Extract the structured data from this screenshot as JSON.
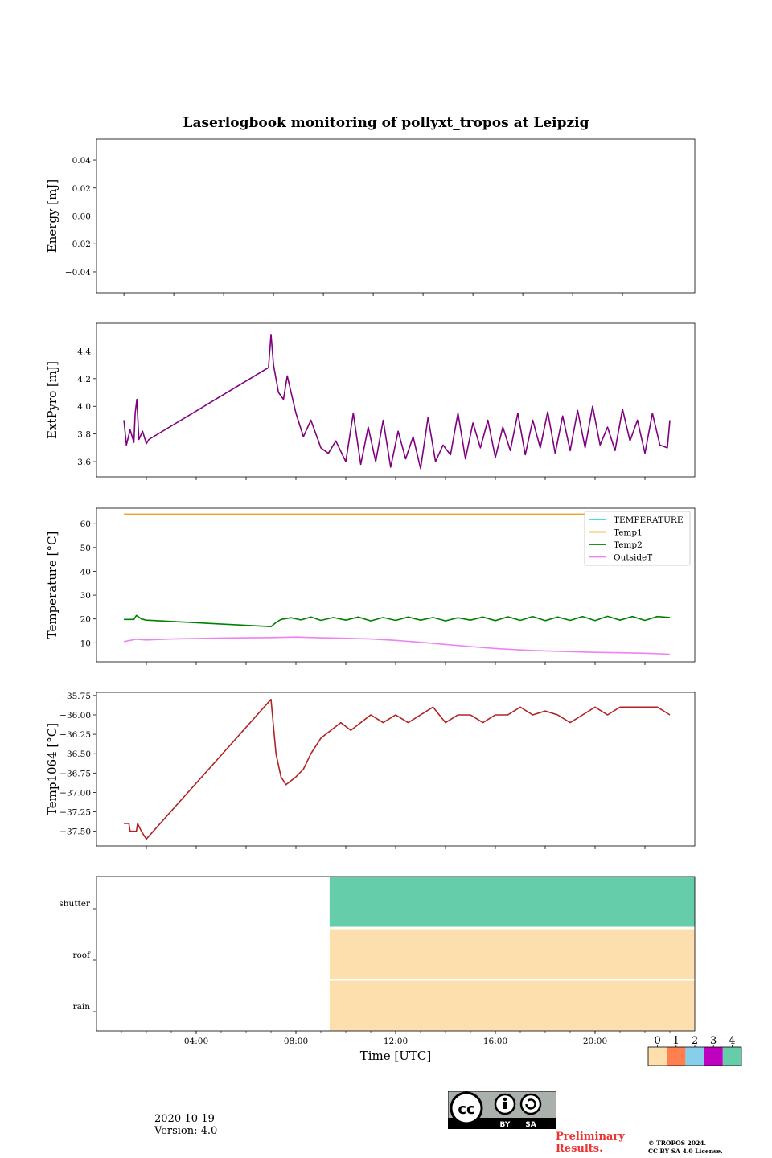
{
  "figure": {
    "title": "Laserlogbook monitoring of pollyxt_tropos at Leipzig"
  },
  "footer": {
    "date": "2020-10-19",
    "version": "Version: 4.0",
    "preliminary": "Preliminary\nResults.",
    "copyright": "© TROPOS 2024.\nCC BY SA 4.0 License.",
    "cc_text": {
      "by": "BY",
      "sa": "SA"
    }
  },
  "chart_data": [
    {
      "type": "line",
      "panel": "energy",
      "ylabel": "Energy [mJ]",
      "ylim": [
        -0.055,
        0.055
      ],
      "yticks": [
        0.04,
        0.02,
        0.0,
        -0.02,
        -0.04
      ],
      "ytick_labels": [
        "0.04",
        "0.02",
        "0.00",
        "−0.02",
        "−0.04"
      ],
      "xlim": [
        0,
        24
      ],
      "series": []
    },
    {
      "type": "line",
      "panel": "extpyro",
      "ylabel": "ExtPyro [mJ]",
      "ylim": [
        3.49,
        4.6
      ],
      "yticks": [
        3.6,
        3.8,
        4.0,
        4.2,
        4.4
      ],
      "ytick_labels": [
        "3.6",
        "3.8",
        "4.0",
        "4.2",
        "4.4"
      ],
      "xlim": [
        0,
        24
      ],
      "series": [
        {
          "name": "ExtPyro",
          "color": "#800080",
          "x": [
            1.1,
            1.2,
            1.35,
            1.5,
            1.55,
            1.62,
            1.7,
            1.85,
            2.0,
            2.1,
            6.9,
            7.0,
            7.1,
            7.3,
            7.5,
            7.65,
            8.0,
            8.3,
            8.6,
            9.0,
            9.3,
            9.6,
            10.0,
            10.3,
            10.6,
            10.9,
            11.2,
            11.5,
            11.8,
            12.1,
            12.4,
            12.7,
            13.0,
            13.3,
            13.6,
            13.9,
            14.2,
            14.5,
            14.8,
            15.1,
            15.4,
            15.7,
            16.0,
            16.3,
            16.6,
            16.9,
            17.2,
            17.5,
            17.8,
            18.1,
            18.4,
            18.7,
            19.0,
            19.3,
            19.6,
            19.9,
            20.2,
            20.5,
            20.8,
            21.1,
            21.4,
            21.7,
            22.0,
            22.3,
            22.6,
            22.9,
            23.0
          ],
          "y": [
            3.9,
            3.72,
            3.83,
            3.74,
            3.95,
            4.05,
            3.76,
            3.82,
            3.73,
            3.76,
            4.28,
            4.52,
            4.3,
            4.1,
            4.05,
            4.22,
            3.95,
            3.78,
            3.9,
            3.7,
            3.66,
            3.75,
            3.6,
            3.95,
            3.58,
            3.85,
            3.6,
            3.9,
            3.56,
            3.82,
            3.62,
            3.78,
            3.55,
            3.92,
            3.6,
            3.72,
            3.65,
            3.95,
            3.62,
            3.88,
            3.7,
            3.9,
            3.63,
            3.85,
            3.68,
            3.95,
            3.65,
            3.9,
            3.7,
            3.96,
            3.66,
            3.93,
            3.68,
            3.97,
            3.7,
            4.0,
            3.72,
            3.85,
            3.68,
            3.98,
            3.75,
            3.9,
            3.66,
            3.95,
            3.72,
            3.7,
            3.9
          ]
        }
      ]
    },
    {
      "type": "line",
      "panel": "temperature",
      "ylabel": "Temperature [°C]",
      "ylim": [
        2,
        66.5
      ],
      "yticks": [
        10,
        20,
        30,
        40,
        50,
        60
      ],
      "ytick_labels": [
        "10",
        "20",
        "30",
        "40",
        "50",
        "60"
      ],
      "xlim": [
        0,
        24
      ],
      "legend_position": "top-right",
      "series": [
        {
          "name": "TEMPERATURE",
          "color": "#22dddd",
          "x": [],
          "y": []
        },
        {
          "name": "Temp1",
          "color": "#f0a020",
          "x": [
            1.1,
            23.0
          ],
          "y": [
            64,
            64
          ]
        },
        {
          "name": "Temp2",
          "color": "#008000",
          "x": [
            1.1,
            1.5,
            1.6,
            1.8,
            2.0,
            7.0,
            7.2,
            7.4,
            7.8,
            8.2,
            8.6,
            9.0,
            9.5,
            10.0,
            10.5,
            11.0,
            11.5,
            12.0,
            12.5,
            13.0,
            13.5,
            14.0,
            14.5,
            15.0,
            15.5,
            16.0,
            16.5,
            17.0,
            17.5,
            18.0,
            18.5,
            19.0,
            19.5,
            20.0,
            20.5,
            21.0,
            21.5,
            22.0,
            22.5,
            23.0
          ],
          "y": [
            19.8,
            19.8,
            21.5,
            20.0,
            19.5,
            16.8,
            18.5,
            19.8,
            20.5,
            19.6,
            20.8,
            19.4,
            20.6,
            19.5,
            20.8,
            19.2,
            20.6,
            19.4,
            20.8,
            19.5,
            20.6,
            19.2,
            20.5,
            19.5,
            20.8,
            19.3,
            20.9,
            19.4,
            21.0,
            19.3,
            20.8,
            19.4,
            21.0,
            19.3,
            21.1,
            19.5,
            21.0,
            19.4,
            21.0,
            20.6
          ]
        },
        {
          "name": "OutsideT",
          "color": "#ee82ee",
          "x": [
            1.1,
            1.6,
            2.0,
            3.0,
            5.0,
            7.0,
            8.0,
            9.0,
            10.0,
            11.0,
            12.0,
            13.0,
            14.0,
            15.0,
            16.0,
            17.0,
            18.0,
            19.0,
            20.0,
            21.0,
            22.0,
            23.0
          ],
          "y": [
            10.5,
            11.5,
            11.2,
            11.6,
            12.0,
            12.2,
            12.4,
            12.1,
            11.9,
            11.6,
            11.0,
            10.2,
            9.3,
            8.4,
            7.6,
            7.0,
            6.6,
            6.3,
            6.0,
            5.8,
            5.6,
            5.2
          ]
        }
      ]
    },
    {
      "type": "line",
      "panel": "temp1064",
      "ylabel": "Temp1064 [°C]",
      "ylim": [
        -37.69,
        -35.71
      ],
      "yticks": [
        -35.75,
        -36.0,
        -36.25,
        -36.5,
        -36.75,
        -37.0,
        -37.25,
        -37.5
      ],
      "ytick_labels": [
        "−35.75",
        "−36.00",
        "−36.25",
        "−36.50",
        "−36.75",
        "−37.00",
        "−37.25",
        "−37.50"
      ],
      "xlim": [
        0,
        24
      ],
      "series": [
        {
          "name": "Temp1064",
          "color": "#b22222",
          "x": [
            1.1,
            1.3,
            1.35,
            1.6,
            1.65,
            1.8,
            2.0,
            7.0,
            7.2,
            7.4,
            7.6,
            8.0,
            8.3,
            8.6,
            9.0,
            9.4,
            9.8,
            10.2,
            10.6,
            11.0,
            11.5,
            12.0,
            12.5,
            13.0,
            13.5,
            14.0,
            14.5,
            15.0,
            15.5,
            16.0,
            16.5,
            17.0,
            17.5,
            18.0,
            18.5,
            19.0,
            19.5,
            20.0,
            20.5,
            21.0,
            21.5,
            22.0,
            22.5,
            23.0
          ],
          "y": [
            -37.4,
            -37.4,
            -37.5,
            -37.5,
            -37.4,
            -37.5,
            -37.6,
            -35.8,
            -36.5,
            -36.8,
            -36.9,
            -36.8,
            -36.7,
            -36.5,
            -36.3,
            -36.2,
            -36.1,
            -36.2,
            -36.1,
            -36.0,
            -36.1,
            -36.0,
            -36.1,
            -36.0,
            -35.9,
            -36.1,
            -36.0,
            -36.0,
            -36.1,
            -36.0,
            -36.0,
            -35.9,
            -36.0,
            -35.95,
            -36.0,
            -36.1,
            -36.0,
            -35.9,
            -36.0,
            -35.9,
            -35.9,
            -35.9,
            -35.9,
            -36.0
          ]
        }
      ]
    },
    {
      "type": "heatmap",
      "panel": "status",
      "rows": [
        "shutter",
        "roof",
        "rain"
      ],
      "xlim": [
        0,
        24
      ],
      "xlabel": "Time [UTC]",
      "xticks": [
        4,
        8,
        12,
        16,
        20
      ],
      "xtick_labels": [
        "04:00",
        "08:00",
        "12:00",
        "16:00",
        "20:00"
      ],
      "blocks": [
        {
          "row": "shutter",
          "start": 9.35,
          "end": 24,
          "value": 4
        },
        {
          "row": "roof",
          "start": 9.35,
          "end": 24,
          "value": 0
        },
        {
          "row": "rain",
          "start": 9.35,
          "end": 24,
          "value": 0
        }
      ],
      "colorbar": {
        "labels": [
          "0",
          "1",
          "2",
          "3",
          "4"
        ],
        "colors": [
          "#fddfad",
          "#ff7f50",
          "#87ceeb",
          "#c000c0",
          "#66cdaa"
        ]
      }
    }
  ]
}
